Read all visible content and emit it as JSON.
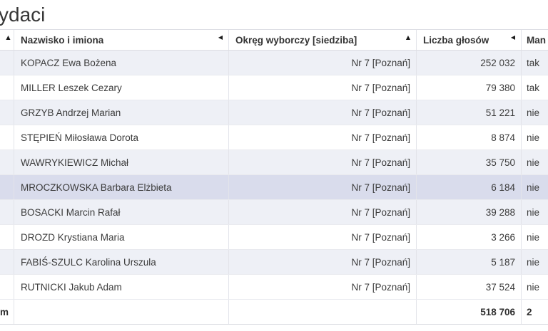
{
  "title_visible": "ydaci",
  "table": {
    "columns": [
      {
        "label": "",
        "sort_glyph": "▲"
      },
      {
        "label": "Nazwisko i imiona",
        "sort_glyph": "◀"
      },
      {
        "label": "Okręg wyborczy [siedziba]",
        "sort_glyph": "▲"
      },
      {
        "label": "Liczba głosów",
        "sort_glyph": "◀"
      },
      {
        "label": "Man",
        "sort_glyph": ""
      }
    ],
    "rows": [
      {
        "name": "KOPACZ Ewa Bożena",
        "district": "Nr 7 [Poznań]",
        "votes": "252 032",
        "mandate": "tak",
        "highlighted": false
      },
      {
        "name": "MILLER Leszek Cezary",
        "district": "Nr 7 [Poznań]",
        "votes": "79 380",
        "mandate": "tak",
        "highlighted": false
      },
      {
        "name": "GRZYB Andrzej Marian",
        "district": "Nr 7 [Poznań]",
        "votes": "51 221",
        "mandate": "nie",
        "highlighted": false
      },
      {
        "name": "STĘPIEŃ Miłosława Dorota",
        "district": "Nr 7 [Poznań]",
        "votes": "8 874",
        "mandate": "nie",
        "highlighted": false
      },
      {
        "name": "WAWRYKIEWICZ Michał",
        "district": "Nr 7 [Poznań]",
        "votes": "35 750",
        "mandate": "nie",
        "highlighted": false
      },
      {
        "name": "MROCZKOWSKA Barbara Elżbieta",
        "district": "Nr 7 [Poznań]",
        "votes": "6 184",
        "mandate": "nie",
        "highlighted": true
      },
      {
        "name": "BOSACKI Marcin Rafał",
        "district": "Nr 7 [Poznań]",
        "votes": "39 288",
        "mandate": "nie",
        "highlighted": false
      },
      {
        "name": "DROZD Krystiana Maria",
        "district": "Nr 7 [Poznań]",
        "votes": "3 266",
        "mandate": "nie",
        "highlighted": false
      },
      {
        "name": "FABIŚ-SZULC Karolina Urszula",
        "district": "Nr 7 [Poznań]",
        "votes": "5 187",
        "mandate": "nie",
        "highlighted": false
      },
      {
        "name": "RUTNICKI Jakub Adam",
        "district": "Nr 7 [Poznań]",
        "votes": "37 524",
        "mandate": "nie",
        "highlighted": false
      }
    ],
    "summary": {
      "label_visible": "m",
      "votes": "518 706",
      "mandates": "2"
    }
  },
  "colors": {
    "stripe_row_bg": "#eef0f6",
    "highlighted_row_bg": "#d9dcec"
  }
}
